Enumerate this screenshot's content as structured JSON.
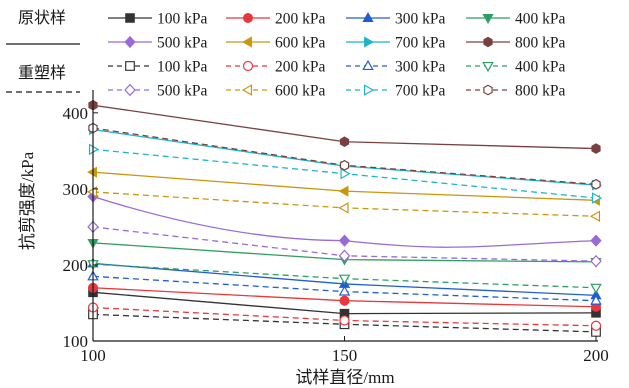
{
  "chart_data": {
    "type": "line",
    "xlabel": "试样直径/mm",
    "ylabel": "抗剪强度/kPa",
    "x": [
      100,
      150,
      200
    ],
    "xlim": [
      100,
      200
    ],
    "ylim": [
      100,
      430
    ],
    "x_ticks": [
      "100",
      "150",
      "200"
    ],
    "y_ticks": [
      "100",
      "200",
      "300",
      "400"
    ],
    "grid": false,
    "legend_position": "top",
    "groups": [
      {
        "label": "原状样",
        "line_style": "solid"
      },
      {
        "label": "重塑样",
        "line_style": "dashed"
      }
    ],
    "series": [
      {
        "name": "100 kPa",
        "group": 0,
        "marker": "square",
        "filled": true,
        "color": "#333333",
        "values": [
          164,
          136,
          137
        ]
      },
      {
        "name": "200 kPa",
        "group": 0,
        "marker": "circle",
        "filled": true,
        "color": "#e8383d",
        "values": [
          170,
          153,
          145
        ]
      },
      {
        "name": "300 kPa",
        "group": 0,
        "marker": "triangle-up",
        "filled": true,
        "color": "#1f5fd1",
        "values": [
          202,
          175,
          160
        ]
      },
      {
        "name": "400 kPa",
        "group": 0,
        "marker": "triangle-down",
        "filled": true,
        "color": "#2e9e63",
        "values": [
          229,
          207,
          204
        ]
      },
      {
        "name": "500 kPa",
        "group": 0,
        "marker": "diamond",
        "filled": true,
        "color": "#9a6ad6",
        "values": [
          290,
          232,
          232
        ]
      },
      {
        "name": "600 kPa",
        "group": 0,
        "marker": "triangle-left",
        "filled": true,
        "color": "#c9960c",
        "values": [
          322,
          297,
          285
        ]
      },
      {
        "name": "700 kPa",
        "group": 0,
        "marker": "triangle-right",
        "filled": true,
        "color": "#1fb5c9",
        "values": [
          378,
          330,
          305
        ]
      },
      {
        "name": "800 kPa",
        "group": 0,
        "marker": "hexagon",
        "filled": true,
        "color": "#7a4040",
        "values": [
          410,
          362,
          353
        ]
      },
      {
        "name": "100 kPa",
        "group": 1,
        "marker": "square",
        "filled": false,
        "color": "#333333",
        "values": [
          135,
          122,
          112
        ]
      },
      {
        "name": "200 kPa",
        "group": 1,
        "marker": "circle",
        "filled": false,
        "color": "#e8383d",
        "values": [
          144,
          127,
          120
        ]
      },
      {
        "name": "300 kPa",
        "group": 1,
        "marker": "triangle-up",
        "filled": false,
        "color": "#1f5fd1",
        "values": [
          185,
          165,
          153
        ]
      },
      {
        "name": "400 kPa",
        "group": 1,
        "marker": "triangle-down",
        "filled": false,
        "color": "#2e9e63",
        "values": [
          201,
          182,
          170
        ]
      },
      {
        "name": "500 kPa",
        "group": 1,
        "marker": "diamond",
        "filled": false,
        "color": "#9a6ad6",
        "values": [
          250,
          212,
          205
        ]
      },
      {
        "name": "600 kPa",
        "group": 1,
        "marker": "triangle-left",
        "filled": false,
        "color": "#c9960c",
        "values": [
          296,
          275,
          264
        ]
      },
      {
        "name": "700 kPa",
        "group": 1,
        "marker": "triangle-right",
        "filled": false,
        "color": "#1fb5c9",
        "values": [
          352,
          320,
          288
        ]
      },
      {
        "name": "800 kPa",
        "group": 1,
        "marker": "hexagon",
        "filled": false,
        "color": "#7a4040",
        "values": [
          380,
          331,
          306
        ]
      }
    ]
  }
}
